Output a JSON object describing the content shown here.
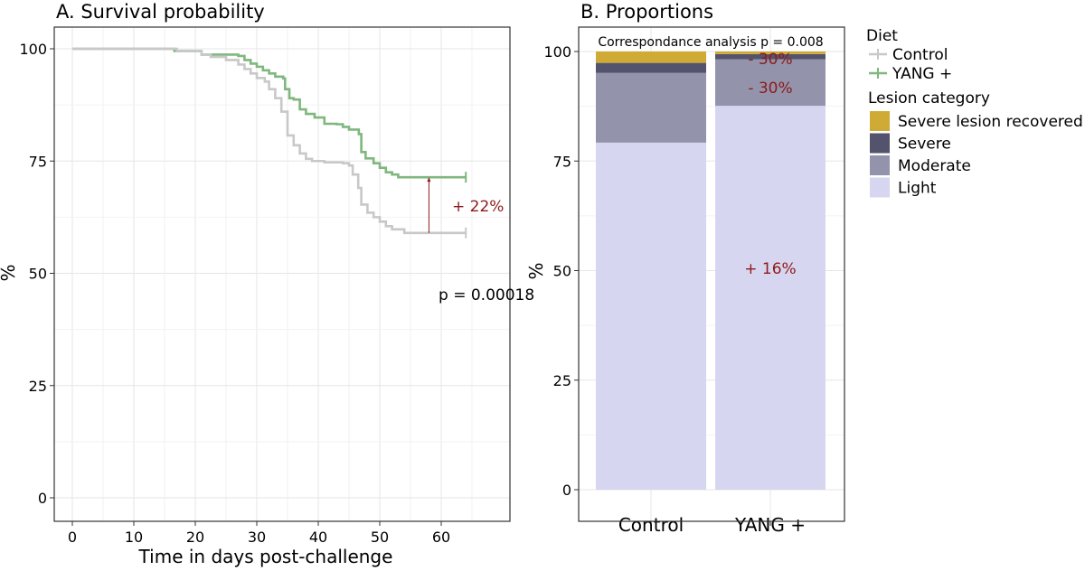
{
  "chart_data": [
    {
      "type": "line",
      "title": "A. Survival probability",
      "xlabel": "Time in days post-challenge",
      "ylabel": "%",
      "xlim": [
        -2,
        67
      ],
      "ylim": [
        -4,
        104
      ],
      "xticks": [
        0,
        10,
        20,
        30,
        40,
        50,
        60
      ],
      "yticks": [
        0,
        25,
        50,
        75,
        100
      ],
      "grid": true,
      "step": true,
      "series": [
        {
          "name": "Control",
          "color": "#c8c8c8",
          "points": [
            [
              0,
              100
            ],
            [
              14,
              100
            ],
            [
              17,
              99.5
            ],
            [
              21,
              98.7
            ],
            [
              22.5,
              98.2
            ],
            [
              25,
              97.5
            ],
            [
              27,
              96.5
            ],
            [
              28,
              95.5
            ],
            [
              29,
              94.5
            ],
            [
              30,
              93.5
            ],
            [
              31.3,
              92.7
            ],
            [
              32,
              91
            ],
            [
              33,
              89
            ],
            [
              34,
              86
            ],
            [
              35,
              80.7
            ],
            [
              36,
              78.5
            ],
            [
              37,
              76.7
            ],
            [
              38,
              75.5
            ],
            [
              39,
              75
            ],
            [
              41,
              74.7
            ],
            [
              44,
              74.5
            ],
            [
              45,
              74
            ],
            [
              45.6,
              72
            ],
            [
              46.5,
              69
            ],
            [
              47,
              65.3
            ],
            [
              48,
              63.5
            ],
            [
              49,
              62.5
            ],
            [
              50,
              61.5
            ],
            [
              51,
              60.5
            ],
            [
              52,
              59.8
            ],
            [
              54,
              59
            ],
            [
              64,
              59
            ]
          ]
        },
        {
          "name": "YANG +",
          "color": "#7fb77e",
          "points": [
            [
              0,
              100
            ],
            [
              14,
              100
            ],
            [
              16.6,
              99.5
            ],
            [
              21,
              98.7
            ],
            [
              27,
              98.4
            ],
            [
              28,
              97.5
            ],
            [
              29,
              96.7
            ],
            [
              30,
              96
            ],
            [
              31,
              95.2
            ],
            [
              32,
              94.5
            ],
            [
              33,
              93.8
            ],
            [
              34.3,
              93.4
            ],
            [
              34.6,
              91
            ],
            [
              35.3,
              89
            ],
            [
              36,
              88.7
            ],
            [
              37,
              86.5
            ],
            [
              38,
              85.5
            ],
            [
              39.4,
              84.7
            ],
            [
              41,
              83.3
            ],
            [
              43,
              83.2
            ],
            [
              44,
              82.6
            ],
            [
              45,
              82
            ],
            [
              46.6,
              81
            ],
            [
              47,
              77
            ],
            [
              47.7,
              75.6
            ],
            [
              49,
              74.5
            ],
            [
              50,
              73.5
            ],
            [
              51,
              72.5
            ],
            [
              52,
              72
            ],
            [
              53,
              71.4
            ],
            [
              64,
              71.4
            ]
          ]
        }
      ],
      "annotations": {
        "difference_label": "+ 22%",
        "difference_day": 58,
        "p_value": "p = 0.00018"
      }
    },
    {
      "type": "bar",
      "stacked": true,
      "title": "B. Proportions",
      "subtitle": "Correspondance analysis p = 0.008",
      "xlabel": "",
      "ylabel": "%",
      "ylim": [
        0,
        100
      ],
      "yticks": [
        0,
        25,
        50,
        75,
        100
      ],
      "grid": true,
      "categories": [
        "Control",
        "YANG +"
      ],
      "series": [
        {
          "name": "Light",
          "color": "#d7d6f0",
          "values": [
            79.2,
            87.6
          ]
        },
        {
          "name": "Moderate",
          "color": "#9394ab",
          "values": [
            15.9,
            10.6
          ]
        },
        {
          "name": "Severe",
          "color": "#54536e",
          "values": [
            2.3,
            1.2
          ]
        },
        {
          "name": "Severe lesion recovered",
          "color": "#cfaa35",
          "values": [
            2.6,
            0.6
          ]
        }
      ],
      "annotations": [
        {
          "category": "YANG +",
          "series": "Severe lesion recovered",
          "label": "- 30%"
        },
        {
          "category": "YANG +",
          "series": "Moderate",
          "label": "- 30%"
        },
        {
          "category": "YANG +",
          "series": "Light",
          "label": "+ 16%"
        }
      ]
    }
  ],
  "legend": {
    "diet_title": "Diet",
    "diet_items": [
      {
        "label": "Control",
        "color": "#c8c8c8"
      },
      {
        "label": "YANG +",
        "color": "#7fb77e"
      }
    ],
    "lesion_title": "Lesion category",
    "lesion_items": [
      {
        "label": "Severe lesion recovered",
        "color": "#cfaa35"
      },
      {
        "label": "Severe",
        "color": "#54536e"
      },
      {
        "label": "Moderate",
        "color": "#9394ab"
      },
      {
        "label": "Light",
        "color": "#d7d6f0"
      }
    ],
    "placement": "right"
  },
  "annotation_color": "#8e1a1a"
}
